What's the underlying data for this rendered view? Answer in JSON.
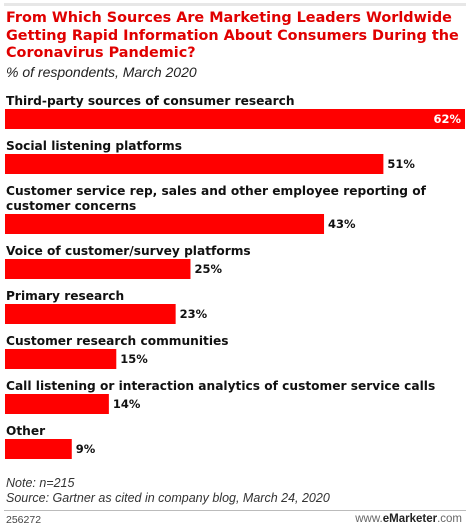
{
  "title": "From Which Sources Are Marketing Leaders Worldwide Getting Rapid Information About Consumers During the Coronavirus Pandemic?",
  "subtitle": "% of respondents, March 2020",
  "note": "Note: n=215",
  "source": "Source: Gartner as cited in company blog, March 24, 2020",
  "chart_id": "256272",
  "brand": {
    "prefix": "www.",
    "name": "eMarketer",
    "suffix": ".com"
  },
  "colors": {
    "title": "#e00000",
    "bar": "#ff0000"
  },
  "chart_data": {
    "type": "bar",
    "orientation": "horizontal",
    "categories": [
      [
        "Third-party sources of consumer research"
      ],
      [
        "Social listening platforms"
      ],
      [
        "Customer service rep, sales and other employee reporting of",
        "customer concerns"
      ],
      [
        "Voice of customer/survey platforms"
      ],
      [
        "Primary research"
      ],
      [
        "Customer research communities"
      ],
      [
        "Call listening or interaction analytics of customer service calls"
      ],
      [
        "Other"
      ]
    ],
    "values": [
      62,
      51,
      43,
      25,
      23,
      15,
      14,
      9
    ],
    "value_labels": [
      "62%",
      "51%",
      "43%",
      "25%",
      "23%",
      "15%",
      "14%",
      "9%"
    ],
    "unit": "%",
    "xlim": [
      0,
      62
    ],
    "grid": false,
    "legend": "none"
  }
}
